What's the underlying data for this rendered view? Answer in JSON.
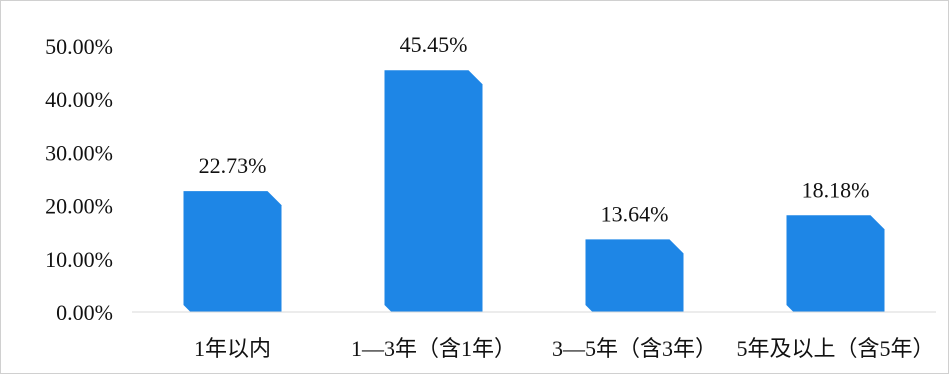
{
  "chart_data": {
    "type": "bar",
    "categories": [
      "1年以内",
      "1—3年（含1年）",
      "3—5年（含3年）",
      "5年及以上（含5年）"
    ],
    "values": [
      22.73,
      45.45,
      13.64,
      18.18
    ],
    "value_labels": [
      "22.73%",
      "45.45%",
      "13.64%",
      "18.18%"
    ],
    "y_ticks": [
      "0.00%",
      "10.00%",
      "20.00%",
      "30.00%",
      "40.00%",
      "50.00%"
    ],
    "title": "",
    "xlabel": "",
    "ylabel": "",
    "ylim": [
      0,
      50
    ],
    "grid": false,
    "legend": "none",
    "bar_color": "#1e86e6"
  }
}
